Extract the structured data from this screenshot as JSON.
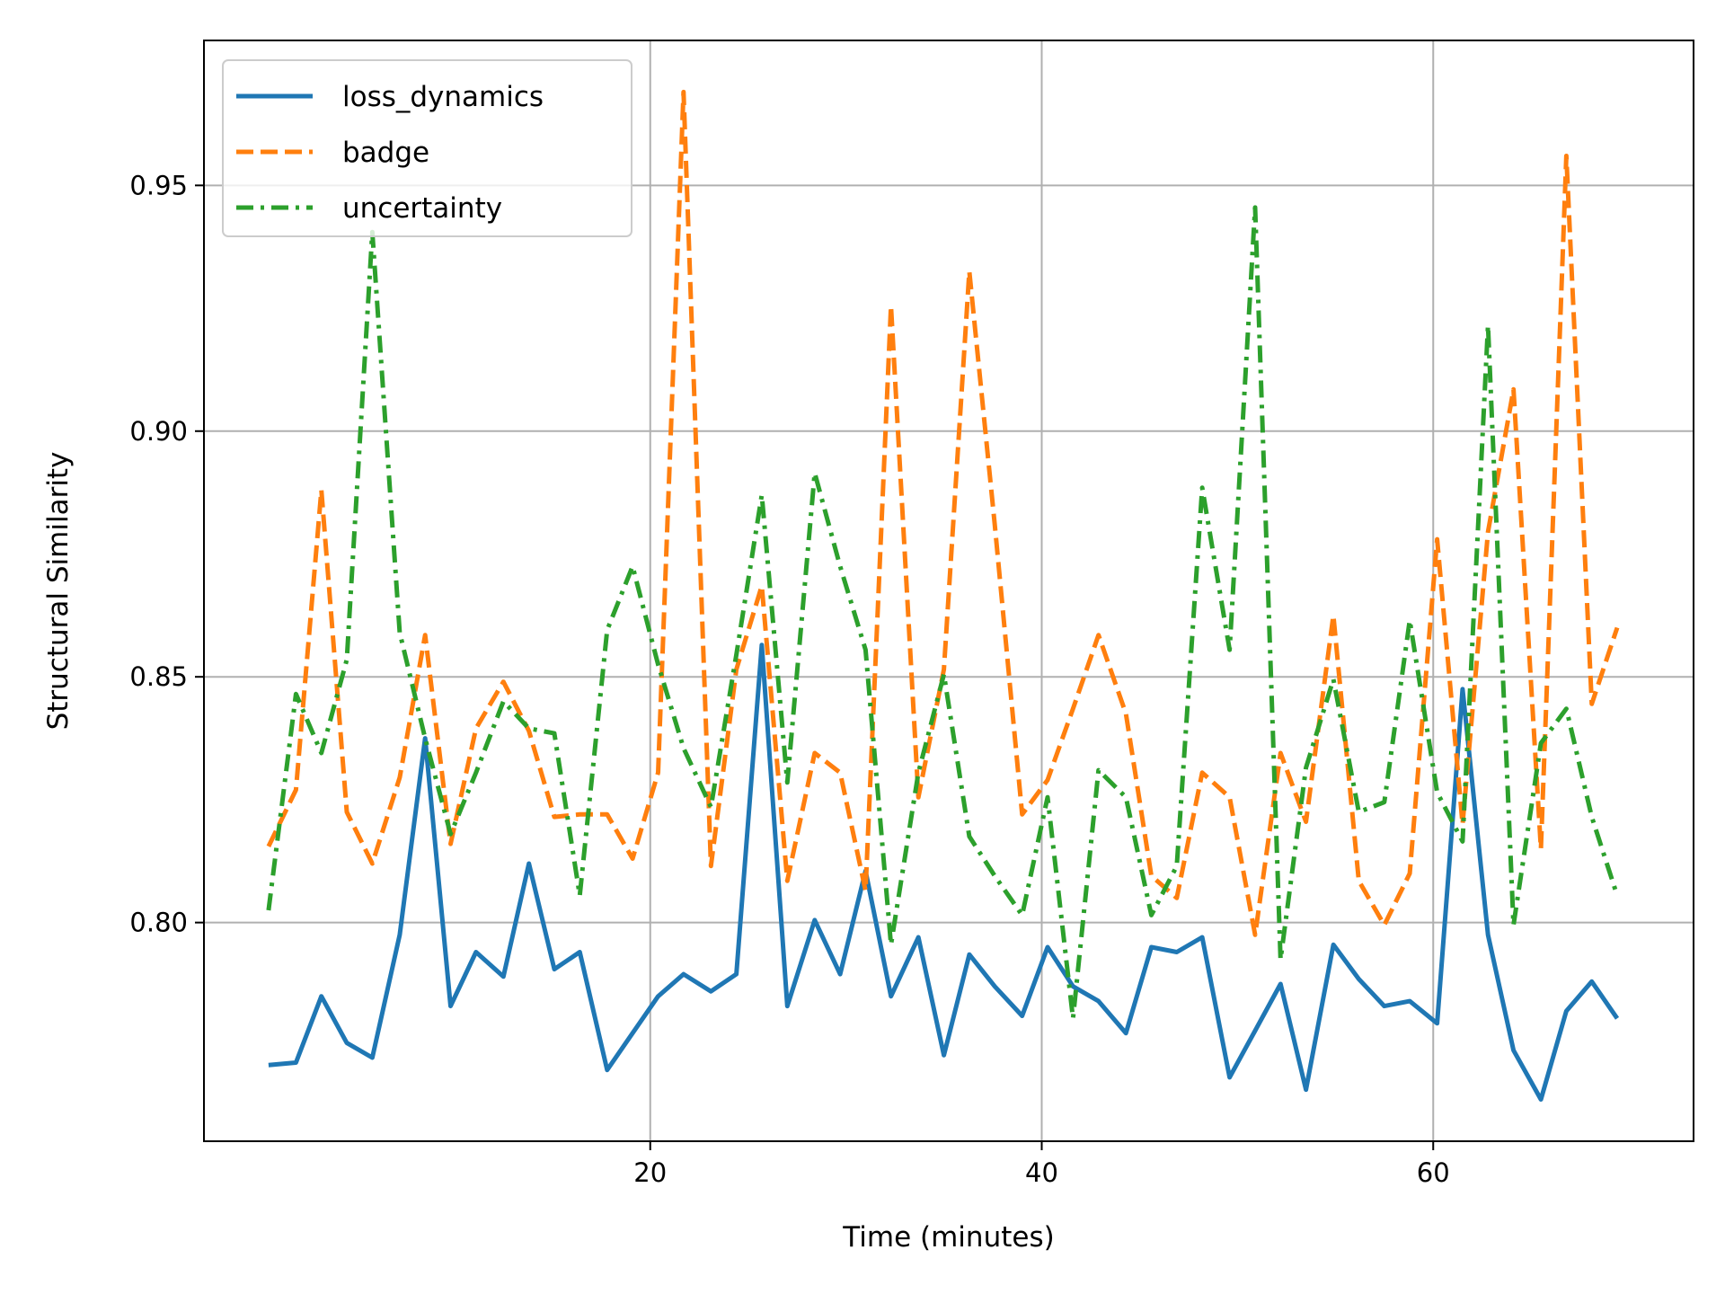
{
  "chart_data": {
    "type": "line",
    "title": "",
    "xlabel": "Time (minutes)",
    "ylabel": "Structural Similarity",
    "xlim": [
      -2.8,
      73.3
    ],
    "ylim": [
      0.7555,
      0.9795
    ],
    "xticks": [
      20,
      40,
      60
    ],
    "xtick_labels": [
      "20",
      "40",
      "60"
    ],
    "yticks": [
      0.8,
      0.85,
      0.9,
      0.95
    ],
    "ytick_labels": [
      "0.80",
      "0.85",
      "0.90",
      "0.95"
    ],
    "grid": true,
    "legend_position": "upper-left",
    "x": [
      0.5,
      1.9,
      3.2,
      4.5,
      5.8,
      7.2,
      8.5,
      9.8,
      11.1,
      12.5,
      13.8,
      15.1,
      16.4,
      17.8,
      19.1,
      20.4,
      21.7,
      23.1,
      24.4,
      25.7,
      27.0,
      28.4,
      29.7,
      31.0,
      32.3,
      33.7,
      35.0,
      36.3,
      37.6,
      39.0,
      40.3,
      41.6,
      42.9,
      44.3,
      45.6,
      46.9,
      48.2,
      49.6,
      50.9,
      52.2,
      53.5,
      54.9,
      56.2,
      57.5,
      58.8,
      60.2,
      61.5,
      62.8,
      64.1,
      65.5,
      66.8,
      68.1,
      69.4
    ],
    "series": [
      {
        "name": "loss_dynamics",
        "color": "#1f77b4",
        "dash": "solid",
        "values": [
          0.771,
          0.7715,
          0.785,
          0.7755,
          0.7725,
          0.7975,
          0.8375,
          0.783,
          0.794,
          0.789,
          0.812,
          0.7905,
          0.794,
          0.77,
          0.7775,
          0.785,
          0.7895,
          0.786,
          0.7895,
          0.8565,
          0.783,
          0.8005,
          0.7895,
          0.8105,
          0.785,
          0.797,
          0.773,
          0.7935,
          0.787,
          0.781,
          0.795,
          0.787,
          0.784,
          0.7775,
          0.795,
          0.794,
          0.797,
          0.7685,
          0.778,
          0.7875,
          0.766,
          0.7955,
          0.7885,
          0.783,
          0.784,
          0.7795,
          0.8475,
          0.7975,
          0.774,
          0.764,
          0.782,
          0.788,
          0.7805
        ]
      },
      {
        "name": "badge",
        "color": "#ff7f0e",
        "dash": "dashed",
        "values": [
          0.8155,
          0.827,
          0.888,
          0.8225,
          0.812,
          0.8295,
          0.8585,
          0.816,
          0.8395,
          0.849,
          0.839,
          0.8215,
          0.822,
          0.822,
          0.813,
          0.8305,
          0.969,
          0.8115,
          0.8515,
          0.8685,
          0.8085,
          0.8345,
          0.8305,
          0.8065,
          0.9255,
          0.8255,
          0.8515,
          0.9325,
          0.881,
          0.822,
          0.829,
          0.8435,
          0.8585,
          0.8425,
          0.8095,
          0.805,
          0.8305,
          0.8255,
          0.7975,
          0.8345,
          0.8205,
          0.8625,
          0.8085,
          0.7995,
          0.81,
          0.878,
          0.82,
          0.8795,
          0.9085,
          0.815,
          0.956,
          0.8445,
          0.86
        ]
      },
      {
        "name": "uncertainty",
        "color": "#2ca02c",
        "dash": "dashdot",
        "values": [
          0.8025,
          0.8465,
          0.8345,
          0.8535,
          0.9405,
          0.859,
          0.8375,
          0.818,
          0.8305,
          0.845,
          0.8395,
          0.8385,
          0.8055,
          0.8595,
          0.8725,
          0.8525,
          0.8355,
          0.8235,
          0.8545,
          0.887,
          0.8285,
          0.8915,
          0.8725,
          0.8555,
          0.7955,
          0.8305,
          0.8505,
          0.8175,
          0.8095,
          0.8015,
          0.8255,
          0.7805,
          0.831,
          0.8255,
          0.8015,
          0.8115,
          0.8885,
          0.8555,
          0.9455,
          0.7925,
          0.8315,
          0.8495,
          0.8225,
          0.8245,
          0.8615,
          0.8265,
          0.8165,
          0.9215,
          0.7995,
          0.8365,
          0.8435,
          0.8215,
          0.8055
        ]
      }
    ]
  }
}
